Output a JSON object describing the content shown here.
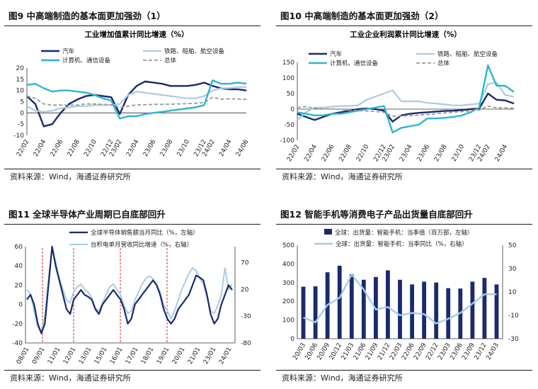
{
  "panels": [
    {
      "fig_title": "图9  中高端制造的基本面更加强劲（1）",
      "source": "资料来源：Wind，海通证券研究所"
    },
    {
      "fig_title": "图10 中高端制造的基本面更加强劲（2）",
      "source": "资料来源：Wind，海通证券研究所"
    },
    {
      "fig_title": "图11 全球半导体产业周期已自底部回升",
      "source": "资料来源：Wind，海通证券研究所"
    },
    {
      "fig_title": "图12 智能手机等消费电子产品出货量自底部回升",
      "source": "资料来源：Wind，海通证券研究所"
    }
  ],
  "chart_data": [
    {
      "type": "line",
      "title": "工业增加值累计同比增速（%）",
      "categories": [
        "22/02",
        "22/03",
        "22/04",
        "22/05",
        "22/06",
        "22/07",
        "22/08",
        "22/09",
        "22/10",
        "22/11",
        "22/12",
        "23/02",
        "23/03",
        "23/04",
        "23/05",
        "23/06",
        "23/07",
        "23/08",
        "23/09",
        "23/10",
        "23/11",
        "23/12",
        "24/02",
        "24/03",
        "24/04",
        "24/05",
        "24/06"
      ],
      "tick_labels": [
        "22/02",
        "22/04",
        "22/06",
        "22/08",
        "22/10",
        "22/12",
        "23/02",
        "23/04",
        "23/06",
        "23/08",
        "23/10",
        "23/12",
        "24/02",
        "24/04",
        "24/06"
      ],
      "ylim": [
        -10,
        20
      ],
      "yticks": [
        -10,
        -5,
        0,
        5,
        10,
        15,
        20
      ],
      "legend": [
        "汽车",
        "铁路、船舶、航空设备",
        "计算机、通信设备",
        "总体"
      ],
      "series": [
        {
          "name": "汽车",
          "color": "#1a2a6c",
          "dash": "",
          "width": 2.4,
          "values": [
            7.5,
            4,
            -6,
            -5,
            0,
            4,
            6,
            7.5,
            8,
            7.5,
            7,
            -0.5,
            8,
            12,
            14,
            13.5,
            13,
            12,
            12,
            12,
            12.5,
            13.5,
            12,
            11,
            10.5,
            10.5,
            10
          ]
        },
        {
          "name": "铁路、船舶、航空设备",
          "color": "#a9cbe6",
          "dash": "",
          "width": 2.2,
          "values": [
            3,
            1,
            0.5,
            1,
            2,
            2.5,
            3,
            3,
            3.5,
            3.5,
            3.5,
            4,
            8,
            9.5,
            9,
            8.5,
            8,
            7.5,
            7,
            6.5,
            6.5,
            7.5,
            10,
            11,
            11,
            11.5,
            11.5
          ]
        },
        {
          "name": "计算机、通信设备",
          "color": "#2cb5cf",
          "dash": "",
          "width": 2.4,
          "values": [
            12.5,
            13,
            11,
            9.5,
            10,
            10,
            9.5,
            9,
            8,
            6.5,
            5.5,
            -2.5,
            -1.5,
            -1.5,
            -0.5,
            0,
            0.5,
            1,
            1.5,
            2,
            2.5,
            3.5,
            14.5,
            13,
            13,
            13.5,
            13
          ]
        },
        {
          "name": "总体",
          "color": "#9a9a9a",
          "dash": "5,3",
          "width": 1.8,
          "values": [
            7.5,
            6.5,
            4,
            3.5,
            3.5,
            3.5,
            3.5,
            4,
            4,
            3.8,
            3.6,
            2.4,
            3,
            3.6,
            3.6,
            3.8,
            3.8,
            3.9,
            4,
            4.1,
            4.3,
            4.6,
            7,
            6.1,
            6.3,
            6.2,
            6
          ]
        }
      ]
    },
    {
      "type": "line",
      "title": "工业企业利润累计同比增速（%）",
      "categories": [
        "22/02",
        "22/03",
        "22/04",
        "22/05",
        "22/06",
        "22/07",
        "22/08",
        "22/09",
        "22/10",
        "22/11",
        "22/12",
        "23/02",
        "23/03",
        "23/04",
        "23/05",
        "23/06",
        "23/07",
        "23/08",
        "23/09",
        "23/10",
        "23/11",
        "23/12",
        "24/02",
        "24/03",
        "24/04",
        "24/05"
      ],
      "tick_labels": [
        "22/02",
        "22/04",
        "22/06",
        "22/08",
        "22/10",
        "22/12",
        "23/02",
        "23/04",
        "23/06",
        "23/08",
        "23/10",
        "23/12",
        "24/02",
        "24/04"
      ],
      "ylim": [
        -100,
        150
      ],
      "yticks": [
        -100,
        -50,
        0,
        50,
        100,
        150
      ],
      "legend": [
        "汽车",
        "铁路、船舶、航空设备",
        "计算机、通信设备",
        "总体"
      ],
      "series": [
        {
          "name": "汽车",
          "color": "#1a2a6c",
          "dash": "",
          "width": 2.4,
          "values": [
            -15,
            -25,
            -35,
            -25,
            -15,
            -10,
            -5,
            0,
            2,
            0,
            -5,
            -40,
            -20,
            -15,
            -12,
            -10,
            -8,
            -6,
            -5,
            -3,
            0,
            2,
            50,
            30,
            28,
            18
          ]
        },
        {
          "name": "铁路、船舶、航空设备",
          "color": "#a9cbe6",
          "dash": "",
          "width": 2.2,
          "values": [
            -35,
            -10,
            5,
            5,
            8,
            10,
            10,
            12,
            30,
            40,
            50,
            60,
            25,
            25,
            25,
            20,
            18,
            15,
            12,
            12,
            15,
            18,
            80,
            85,
            45,
            40
          ]
        },
        {
          "name": "计算机、通信设备",
          "color": "#2cb5cf",
          "dash": "",
          "width": 2.4,
          "values": [
            -10,
            -15,
            -20,
            -20,
            -15,
            -15,
            -10,
            -5,
            0,
            5,
            10,
            -75,
            -60,
            -55,
            -50,
            -30,
            -30,
            -28,
            -25,
            -20,
            -10,
            5,
            140,
            75,
            75,
            55
          ]
        },
        {
          "name": "总体",
          "color": "#9a9a9a",
          "dash": "5,3",
          "width": 1.8,
          "values": [
            5,
            8,
            3,
            1,
            1,
            -1,
            -3,
            -5,
            -6,
            -8,
            -10,
            -23,
            -22,
            -21,
            -19,
            -17,
            -15,
            -12,
            -10,
            -8,
            -5,
            -3,
            10,
            4,
            4,
            3
          ]
        }
      ]
    },
    {
      "type": "line",
      "title": "",
      "tick_labels": [
        "08/01",
        "09/01",
        "11/01",
        "12/01",
        "13/01",
        "15/01",
        "16/01",
        "17/01",
        "18/01",
        "19/01",
        "20/01",
        "21/01",
        "23/01",
        "24/01"
      ],
      "left_ylim": [
        -40,
        60
      ],
      "left_yticks": [
        -40,
        -20,
        0,
        20,
        40,
        60
      ],
      "right_ylim": [
        -80,
        100
      ],
      "right_yticks": [
        -80,
        -30,
        20,
        70
      ],
      "legend": [
        "全球半导体销售额当月同比（%，左轴）",
        "台积电单月营收同比增速（%，右轴）"
      ],
      "cycle_lows": [
        "09/01",
        "12/01",
        "16/01",
        "19/01"
      ],
      "series": [
        {
          "name": "全球半导体销售额当月同比（%，左轴）",
          "axis": "left",
          "color": "#1a2a6c",
          "width": 2.2,
          "values": [
            5,
            10,
            0,
            -20,
            -30,
            -20,
            20,
            60,
            40,
            25,
            10,
            -5,
            -10,
            5,
            10,
            15,
            10,
            8,
            5,
            -5,
            -10,
            0,
            5,
            10,
            15,
            10,
            5,
            -5,
            -20,
            -15,
            0,
            5,
            10,
            15,
            20,
            25,
            20,
            10,
            -5,
            -15,
            -20,
            -15,
            -5,
            0,
            5,
            10,
            20,
            30,
            28,
            25,
            10,
            -10,
            -20,
            -15,
            0,
            10,
            20,
            15
          ]
        },
        {
          "name": "台积电单月营收同比增速（%，右轴）",
          "axis": "right",
          "color": "#a9cbe6",
          "width": 2.0,
          "values": [
            20,
            10,
            -20,
            -50,
            -60,
            -30,
            40,
            95,
            70,
            40,
            20,
            0,
            -5,
            15,
            25,
            30,
            20,
            15,
            5,
            -15,
            -20,
            -5,
            10,
            25,
            30,
            20,
            10,
            -10,
            -25,
            -20,
            0,
            15,
            30,
            40,
            45,
            40,
            30,
            15,
            -10,
            -20,
            -35,
            -20,
            0,
            20,
            35,
            50,
            60,
            55,
            40,
            30,
            5,
            -20,
            -25,
            -10,
            10,
            60,
            20,
            30
          ]
        }
      ]
    },
    {
      "type": "bar",
      "title": "",
      "categories": [
        "20/03",
        "20/06",
        "20/09",
        "20/12",
        "21/03",
        "21/06",
        "21/09",
        "21/12",
        "22/03",
        "22/06",
        "22/09",
        "22/12",
        "23/03",
        "23/06",
        "23/09",
        "23/12",
        "24/03"
      ],
      "left_ylim": [
        0,
        500
      ],
      "left_yticks": [
        0,
        100,
        200,
        300,
        400,
        500
      ],
      "right_ylim": [
        -30,
        50
      ],
      "right_yticks": [
        -30,
        -10,
        10,
        30,
        50
      ],
      "legend": [
        "全球：出货量：智能手机：当季值（百万部，左轴）",
        "全球：出货量：智能手机：当季同比（%，右轴）"
      ],
      "series": [
        {
          "name": "全球：出货量：智能手机：当季值（百万部，左轴）",
          "axis": "left",
          "color": "#1a2a6c",
          "values": [
            278,
            280,
            355,
            390,
            345,
            315,
            330,
            365,
            315,
            290,
            305,
            300,
            270,
            268,
            305,
            325,
            290
          ]
        },
        {
          "name": "全球：出货量：智能手机：当季同比（%，右轴）",
          "axis": "right",
          "color": "#a9cbe6",
          "values": [
            -12,
            -16,
            -1,
            5,
            25,
            12,
            -5,
            -3,
            -10,
            -8,
            -9,
            -17,
            -13,
            -8,
            0,
            8,
            8
          ]
        }
      ]
    }
  ]
}
